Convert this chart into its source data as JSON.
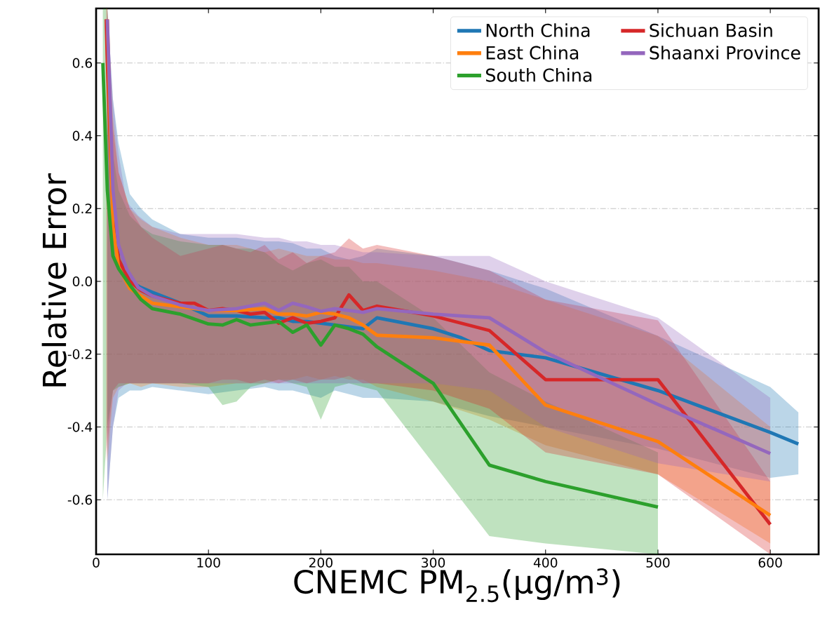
{
  "chart_data": {
    "type": "line",
    "xlabel": "CNEMC PM$_{2.5}$(μg/m$^{3}$)",
    "ylabel": "Relative Error",
    "xlim": [
      0,
      643
    ],
    "ylim": [
      -0.75,
      0.75
    ],
    "xticks": [
      0,
      100,
      200,
      300,
      400,
      500,
      600
    ],
    "yticks": [
      -0.6,
      -0.4,
      -0.2,
      {
        "value": 0,
        "label": "0.0"
      },
      0.2,
      0.4,
      0.6
    ],
    "grid": "y",
    "legend": "top right",
    "series": [
      {
        "name": "North China",
        "color": "#1f77b4",
        "x": [
          10,
          15,
          20,
          30,
          40,
          50,
          75,
          100,
          125,
          150,
          162.5,
          175,
          187.5,
          200,
          212.5,
          225,
          237.5,
          250,
          300,
          325,
          350,
          400,
          500,
          600,
          625
        ],
        "values": [
          null,
          0.2,
          0.06,
          0.0,
          -0.017,
          -0.03,
          -0.06,
          -0.095,
          -0.095,
          -0.1,
          -0.1,
          -0.11,
          -0.11,
          -0.115,
          -0.12,
          -0.125,
          -0.13,
          -0.1,
          -0.13,
          -0.155,
          -0.19,
          -0.21,
          -0.3,
          -0.415,
          -0.447
        ],
        "upper": [
          0.75,
          0.5,
          0.38,
          0.24,
          0.2,
          0.17,
          0.13,
          0.12,
          0.12,
          0.11,
          0.11,
          0.105,
          0.09,
          0.09,
          0.07,
          0.06,
          0.07,
          0.09,
          0.07,
          0.05,
          0.03,
          -0.02,
          -0.15,
          -0.29,
          -0.36
        ],
        "lower": [
          -0.6,
          -0.4,
          -0.32,
          -0.3,
          -0.3,
          -0.29,
          -0.3,
          -0.31,
          -0.3,
          -0.29,
          -0.3,
          -0.3,
          -0.31,
          -0.32,
          -0.3,
          -0.31,
          -0.32,
          -0.32,
          -0.33,
          -0.35,
          -0.37,
          -0.4,
          -0.46,
          -0.54,
          -0.53
        ]
      },
      {
        "name": "East China",
        "color": "#ff7f0e",
        "x": [
          10,
          15,
          20,
          30,
          40,
          50,
          75,
          100,
          125,
          150,
          162.5,
          175,
          187.5,
          200,
          212.5,
          225,
          237.5,
          250,
          300,
          350,
          400,
          500,
          600
        ],
        "values": [
          0.72,
          0.15,
          0.04,
          -0.02,
          -0.04,
          -0.06,
          -0.07,
          -0.08,
          -0.08,
          -0.075,
          -0.09,
          -0.09,
          -0.095,
          -0.085,
          -0.09,
          -0.1,
          -0.12,
          -0.148,
          -0.155,
          -0.175,
          -0.34,
          -0.44,
          -0.643
        ],
        "upper": [
          0.75,
          0.45,
          0.3,
          0.2,
          0.17,
          0.15,
          0.12,
          0.1,
          0.1,
          0.08,
          0.09,
          0.08,
          0.07,
          0.07,
          0.06,
          0.06,
          0.05,
          0.05,
          0.03,
          0.0,
          -0.05,
          -0.15,
          -0.4
        ],
        "lower": [
          -0.5,
          -0.32,
          -0.29,
          -0.28,
          -0.29,
          -0.28,
          -0.29,
          -0.29,
          -0.28,
          -0.28,
          -0.27,
          -0.27,
          -0.26,
          -0.27,
          -0.26,
          -0.27,
          -0.27,
          -0.29,
          -0.33,
          -0.38,
          -0.45,
          -0.53,
          -0.72
        ]
      },
      {
        "name": "South China",
        "color": "#2ca02c",
        "x": [
          6,
          10,
          15,
          20,
          30,
          40,
          50,
          75,
          100,
          112.5,
          125,
          137.5,
          150,
          162.5,
          175,
          187.5,
          200,
          212.5,
          225,
          237.5,
          250,
          300,
          350,
          400,
          500
        ],
        "values": [
          0.6,
          0.25,
          0.07,
          0.035,
          -0.01,
          -0.05,
          -0.075,
          -0.09,
          -0.117,
          -0.12,
          -0.105,
          -0.12,
          -0.115,
          -0.11,
          -0.14,
          -0.12,
          -0.175,
          -0.12,
          -0.13,
          -0.145,
          -0.18,
          -0.28,
          -0.505,
          -0.55,
          -0.62
        ],
        "upper": [
          0.75,
          0.75,
          0.35,
          0.25,
          0.18,
          0.15,
          0.13,
          0.11,
          0.1,
          0.1,
          0.09,
          0.09,
          0.08,
          0.05,
          0.03,
          0.05,
          0.06,
          0.04,
          0.04,
          0.0,
          0.0,
          -0.1,
          -0.25,
          -0.33,
          -0.47
        ],
        "lower": [
          -0.6,
          -0.4,
          -0.3,
          -0.29,
          -0.28,
          -0.28,
          -0.28,
          -0.28,
          -0.29,
          -0.34,
          -0.33,
          -0.29,
          -0.28,
          -0.27,
          -0.28,
          -0.29,
          -0.38,
          -0.29,
          -0.28,
          -0.29,
          -0.3,
          -0.5,
          -0.7,
          -0.72,
          -0.75
        ]
      },
      {
        "name": "Sichuan Basin",
        "color": "#d62728",
        "x": [
          9,
          10,
          15,
          20,
          30,
          40,
          50,
          75,
          87.5,
          100,
          112.5,
          125,
          137.5,
          150,
          162.5,
          175,
          187.5,
          200,
          212.5,
          225,
          237.5,
          250,
          300,
          350,
          400,
          500,
          600
        ],
        "values": [
          0.72,
          0.6,
          0.19,
          0.06,
          0.0,
          -0.025,
          -0.04,
          -0.06,
          -0.06,
          -0.08,
          -0.075,
          -0.08,
          -0.09,
          -0.085,
          -0.115,
          -0.1,
          -0.115,
          -0.11,
          -0.1,
          -0.037,
          -0.08,
          -0.068,
          -0.095,
          -0.135,
          -0.27,
          -0.27,
          -0.668
        ],
        "upper": [
          0.75,
          0.75,
          0.42,
          0.3,
          0.2,
          0.15,
          0.12,
          0.07,
          0.08,
          0.09,
          0.1,
          0.09,
          0.08,
          0.1,
          0.06,
          0.08,
          0.05,
          0.07,
          0.08,
          0.118,
          0.09,
          0.1,
          0.07,
          0.03,
          -0.05,
          -0.107,
          -0.55
        ],
        "lower": [
          -0.5,
          -0.45,
          -0.3,
          -0.28,
          -0.28,
          -0.28,
          -0.28,
          -0.28,
          -0.28,
          -0.28,
          -0.27,
          -0.27,
          -0.28,
          -0.27,
          -0.28,
          -0.27,
          -0.28,
          -0.27,
          -0.27,
          -0.26,
          -0.28,
          -0.28,
          -0.3,
          -0.35,
          -0.47,
          -0.53,
          -0.75
        ]
      },
      {
        "name": "Shaanxi Province",
        "color": "#9467bd",
        "x": [
          10,
          15,
          20,
          27,
          37.5,
          50,
          75,
          100,
          125,
          150,
          162.5,
          175,
          187.5,
          200,
          212.5,
          225,
          237.5,
          250,
          300,
          350,
          400,
          500,
          600
        ],
        "values": [
          0.72,
          0.25,
          0.1,
          0.035,
          -0.017,
          -0.04,
          -0.065,
          -0.08,
          -0.075,
          -0.06,
          -0.08,
          -0.06,
          -0.07,
          -0.082,
          -0.075,
          -0.08,
          -0.085,
          -0.075,
          -0.09,
          -0.1,
          -0.195,
          -0.338,
          -0.473
        ],
        "upper": [
          0.75,
          0.5,
          0.35,
          0.22,
          0.18,
          0.15,
          0.13,
          0.13,
          0.13,
          0.12,
          0.12,
          0.11,
          0.11,
          0.1,
          0.1,
          0.09,
          0.08,
          0.08,
          0.07,
          0.07,
          0.0,
          -0.1,
          -0.32
        ],
        "lower": [
          -0.6,
          -0.4,
          -0.3,
          -0.28,
          -0.28,
          -0.28,
          -0.28,
          -0.28,
          -0.28,
          -0.28,
          -0.28,
          -0.28,
          -0.28,
          -0.28,
          -0.28,
          -0.28,
          -0.28,
          -0.28,
          -0.28,
          -0.3,
          -0.4,
          -0.5,
          -0.55
        ]
      }
    ]
  }
}
